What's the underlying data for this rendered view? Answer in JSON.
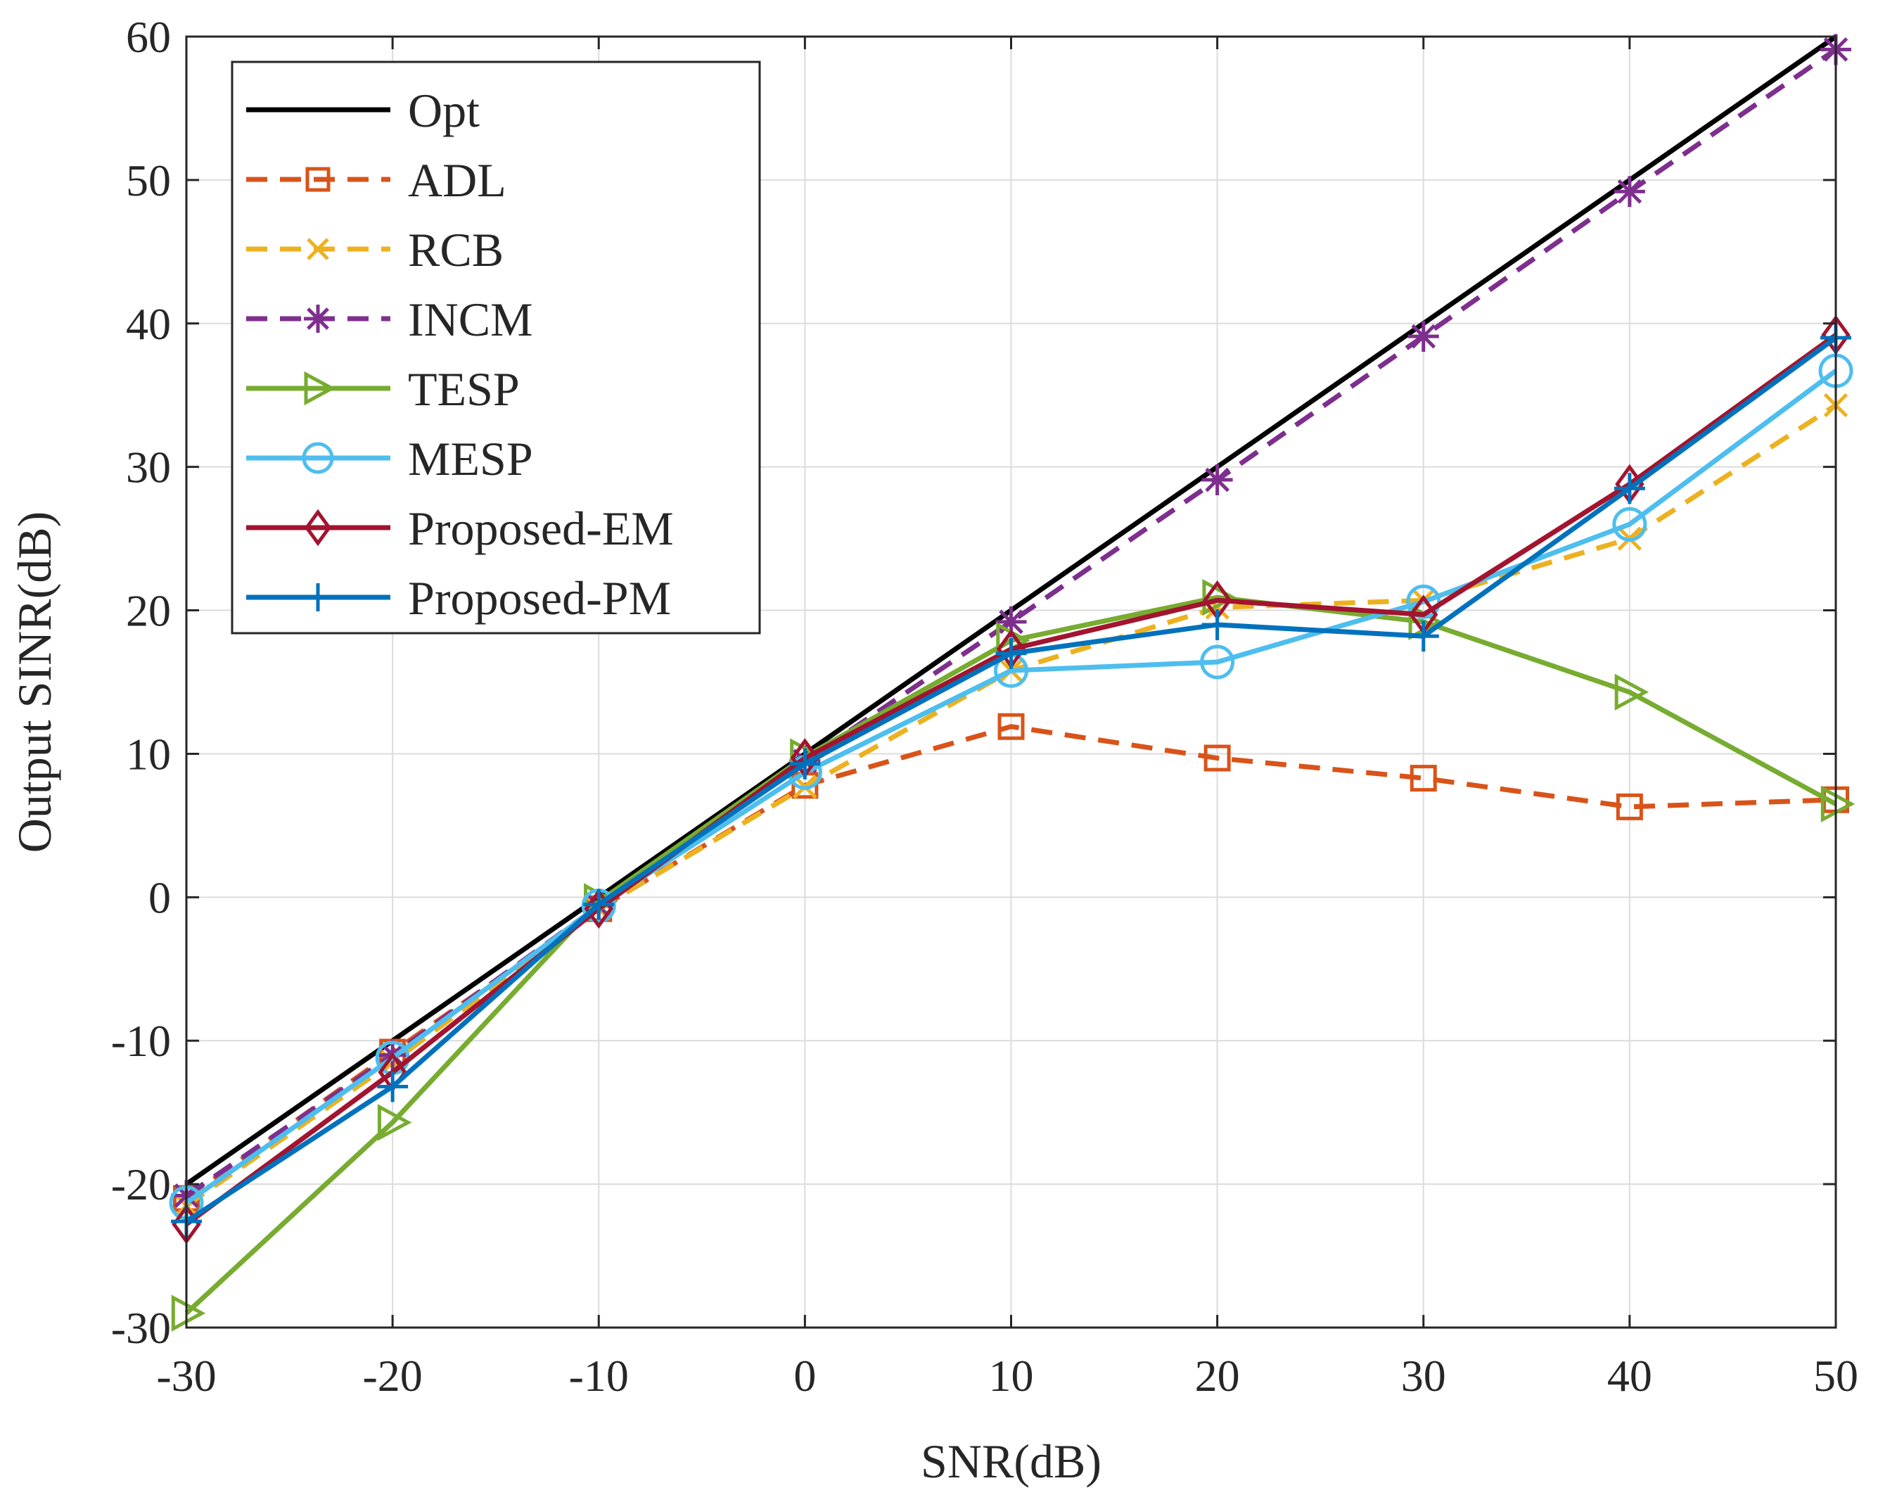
{
  "chart_data": {
    "type": "line",
    "title": "",
    "xlabel": "SNR(dB)",
    "ylabel": "Output SINR(dB)",
    "xlim": [
      -30,
      50
    ],
    "ylim": [
      -30,
      60
    ],
    "grid": true,
    "legend_position": "top-left",
    "x": [
      -30,
      -20,
      -10,
      0,
      10,
      20,
      30,
      40,
      50
    ],
    "x_ticks": [
      "-30",
      "-20",
      "-10",
      "0",
      "10",
      "20",
      "30",
      "40",
      "50"
    ],
    "y_ticks": [
      "-30",
      "-20",
      "-10",
      "0",
      "10",
      "20",
      "30",
      "40",
      "50",
      "60"
    ],
    "series": [
      {
        "name": "Opt",
        "color": "#000000",
        "dash": "solid",
        "marker": "none",
        "values": [
          -20,
          -10,
          0,
          10,
          20,
          30,
          40,
          50,
          60
        ]
      },
      {
        "name": "ADL",
        "color": "#D95319",
        "dash": "dashed",
        "marker": "square",
        "values": [
          -21,
          -10.8,
          -0.8,
          7.8,
          11.9,
          9.7,
          8.3,
          6.3,
          6.8
        ]
      },
      {
        "name": "RCB",
        "color": "#EDB120",
        "dash": "dashed",
        "marker": "x",
        "values": [
          -21.5,
          -11.5,
          -0.8,
          7.7,
          15.8,
          20.2,
          20.7,
          25,
          34.3
        ]
      },
      {
        "name": "INCM",
        "color": "#7E2F8E",
        "dash": "dashed",
        "marker": "asterisk",
        "values": [
          -20.8,
          -11,
          -0.6,
          9.5,
          19.2,
          29.1,
          39.1,
          49.2,
          59.1
        ]
      },
      {
        "name": "TESP",
        "color": "#77AC30",
        "dash": "solid",
        "marker": "triangle-right",
        "values": [
          -29,
          -15.7,
          -0.3,
          9.8,
          17.9,
          20.9,
          19.2,
          14.3,
          6.5
        ]
      },
      {
        "name": "MESP",
        "color": "#4DBEEE",
        "dash": "solid",
        "marker": "circle",
        "values": [
          -21.3,
          -11.2,
          -0.6,
          8.7,
          15.8,
          16.4,
          20.6,
          26,
          36.7
        ]
      },
      {
        "name": "Proposed-EM",
        "color": "#A2142F",
        "dash": "solid",
        "marker": "diamond",
        "values": [
          -22.8,
          -12.2,
          -0.8,
          9.7,
          17.3,
          20.7,
          19.7,
          28.8,
          39.2
        ]
      },
      {
        "name": "Proposed-PM",
        "color": "#0072BD",
        "dash": "solid",
        "marker": "plus",
        "values": [
          -22.6,
          -13.2,
          -0.5,
          9.3,
          17,
          19,
          18.2,
          28.5,
          39
        ]
      }
    ]
  }
}
